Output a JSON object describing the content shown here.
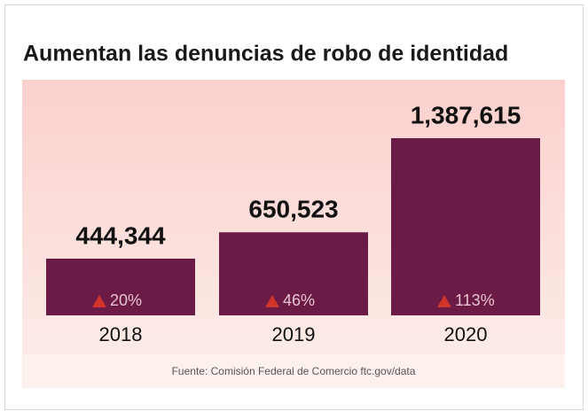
{
  "chart_data": {
    "type": "bar",
    "title": "Aumentan las denuncias de robo de identidad",
    "categories": [
      "2018",
      "2019",
      "2020"
    ],
    "values": [
      444344,
      650523,
      1387615
    ],
    "value_labels": [
      "444,344",
      "650,523",
      "1,387,615"
    ],
    "change_labels": [
      "20%",
      "46%",
      "113%"
    ],
    "color": "#6b1b45",
    "source": "Fuente: Comisión Federal de Comercio ftc.gov/data"
  }
}
